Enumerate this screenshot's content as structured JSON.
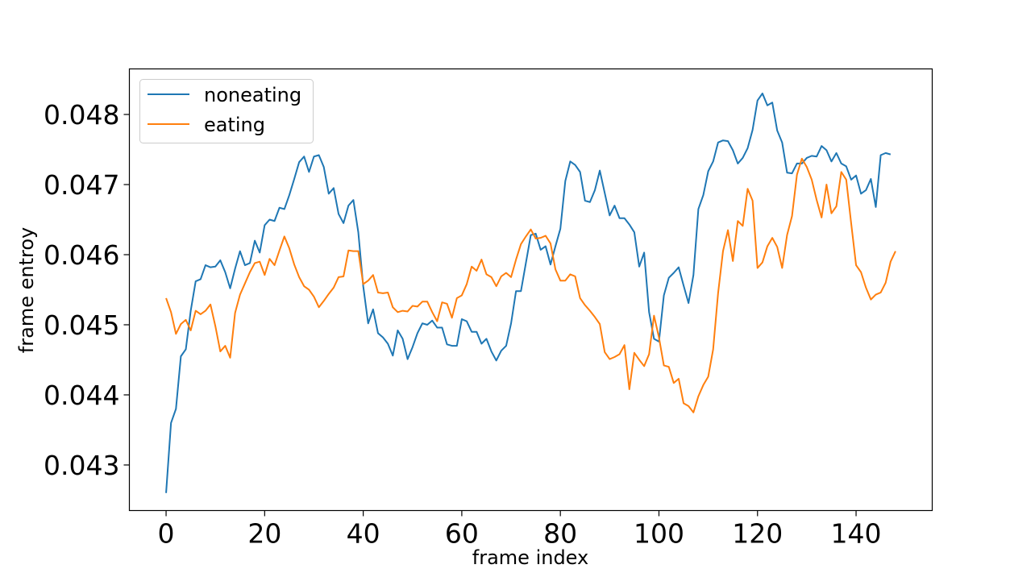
{
  "chart_data": {
    "type": "line",
    "title": "",
    "xlabel": "frame index",
    "ylabel": "frame entroy",
    "xlim": [
      -7.45,
      155.45
    ],
    "ylim": [
      0.04235,
      0.04865
    ],
    "xticks": [
      0,
      20,
      40,
      60,
      80,
      100,
      120,
      140
    ],
    "yticks": [
      0.043,
      0.044,
      0.045,
      0.046,
      0.047,
      0.048
    ],
    "xtick_labels": [
      "0",
      "20",
      "40",
      "60",
      "80",
      "100",
      "120",
      "140"
    ],
    "ytick_labels": [
      "0.043",
      "0.044",
      "0.045",
      "0.046",
      "0.047",
      "0.048"
    ],
    "grid": false,
    "legend_position": "top-left",
    "series": [
      {
        "name": "noneating",
        "color": "#1f77b4",
        "values": [
          0.0426,
          0.0436,
          0.0438,
          0.04455,
          0.04465,
          0.0452,
          0.04562,
          0.04565,
          0.04585,
          0.04582,
          0.04583,
          0.04592,
          0.04575,
          0.04552,
          0.0458,
          0.04605,
          0.04585,
          0.04588,
          0.0462,
          0.04603,
          0.04642,
          0.0465,
          0.04648,
          0.04667,
          0.04665,
          0.04685,
          0.04708,
          0.04732,
          0.0474,
          0.04718,
          0.0474,
          0.04742,
          0.04725,
          0.04687,
          0.04695,
          0.04658,
          0.04645,
          0.0467,
          0.04678,
          0.04632,
          0.04555,
          0.04502,
          0.04522,
          0.04488,
          0.04482,
          0.04473,
          0.04456,
          0.04492,
          0.0448,
          0.04451,
          0.04468,
          0.04488,
          0.04502,
          0.045,
          0.04506,
          0.04496,
          0.04496,
          0.04472,
          0.0447,
          0.0447,
          0.04508,
          0.04505,
          0.0449,
          0.0449,
          0.04473,
          0.0448,
          0.04462,
          0.04449,
          0.04463,
          0.0447,
          0.04502,
          0.04548,
          0.04548,
          0.04588,
          0.04628,
          0.0463,
          0.04607,
          0.04612,
          0.04586,
          0.04612,
          0.04637,
          0.04705,
          0.04733,
          0.04728,
          0.04718,
          0.04677,
          0.04675,
          0.04692,
          0.0472,
          0.04688,
          0.04656,
          0.0467,
          0.04652,
          0.04652,
          0.04643,
          0.04632,
          0.04583,
          0.04603,
          0.04518,
          0.0448,
          0.04476,
          0.04542,
          0.04567,
          0.04574,
          0.04582,
          0.04556,
          0.04531,
          0.04571,
          0.04665,
          0.04685,
          0.04719,
          0.04733,
          0.0476,
          0.04763,
          0.04762,
          0.04749,
          0.0473,
          0.04738,
          0.04752,
          0.04778,
          0.0482,
          0.0483,
          0.04813,
          0.04817,
          0.04777,
          0.0476,
          0.04717,
          0.04716,
          0.0473,
          0.0473,
          0.04738,
          0.04741,
          0.0474,
          0.04755,
          0.04749,
          0.04733,
          0.04745,
          0.0473,
          0.04726,
          0.04707,
          0.04713,
          0.04687,
          0.04692,
          0.04708,
          0.04668,
          0.04742,
          0.04745,
          0.04743
        ]
      },
      {
        "name": "eating",
        "color": "#ff7f0e",
        "values": [
          0.04538,
          0.04518,
          0.04487,
          0.04501,
          0.04507,
          0.04492,
          0.0452,
          0.04515,
          0.0452,
          0.04529,
          0.04498,
          0.04462,
          0.0447,
          0.04453,
          0.04517,
          0.04543,
          0.04559,
          0.04575,
          0.04588,
          0.0459,
          0.04571,
          0.04594,
          0.04585,
          0.04606,
          0.04626,
          0.04609,
          0.04586,
          0.04568,
          0.04555,
          0.0455,
          0.0454,
          0.04525,
          0.04534,
          0.04544,
          0.04553,
          0.04568,
          0.04569,
          0.04606,
          0.04605,
          0.04605,
          0.04558,
          0.04563,
          0.04571,
          0.04546,
          0.04545,
          0.04546,
          0.04525,
          0.04518,
          0.0452,
          0.04519,
          0.04527,
          0.04526,
          0.04533,
          0.04533,
          0.04518,
          0.04505,
          0.04532,
          0.0453,
          0.0451,
          0.04538,
          0.04542,
          0.04558,
          0.04583,
          0.04577,
          0.04593,
          0.04572,
          0.04568,
          0.04555,
          0.04569,
          0.04574,
          0.04568,
          0.04593,
          0.04615,
          0.04626,
          0.04636,
          0.04623,
          0.04624,
          0.04627,
          0.04616,
          0.04579,
          0.04563,
          0.04563,
          0.04572,
          0.04569,
          0.04538,
          0.04528,
          0.0452,
          0.04511,
          0.04501,
          0.04461,
          0.04451,
          0.04454,
          0.04458,
          0.04471,
          0.04408,
          0.0446,
          0.0445,
          0.04441,
          0.04458,
          0.04513,
          0.04482,
          0.04442,
          0.0444,
          0.04417,
          0.04423,
          0.04388,
          0.04384,
          0.04375,
          0.04398,
          0.04414,
          0.04426,
          0.04465,
          0.04545,
          0.04605,
          0.04635,
          0.04591,
          0.04648,
          0.04641,
          0.04694,
          0.04677,
          0.04581,
          0.04589,
          0.04612,
          0.04624,
          0.04611,
          0.04581,
          0.04628,
          0.04655,
          0.04714,
          0.04737,
          0.04725,
          0.04707,
          0.04678,
          0.04653,
          0.047,
          0.04659,
          0.04669,
          0.04718,
          0.04707,
          0.04645,
          0.04585,
          0.04575,
          0.04553,
          0.04536,
          0.04543,
          0.04546,
          0.0456,
          0.0459,
          0.04605
        ]
      }
    ]
  }
}
